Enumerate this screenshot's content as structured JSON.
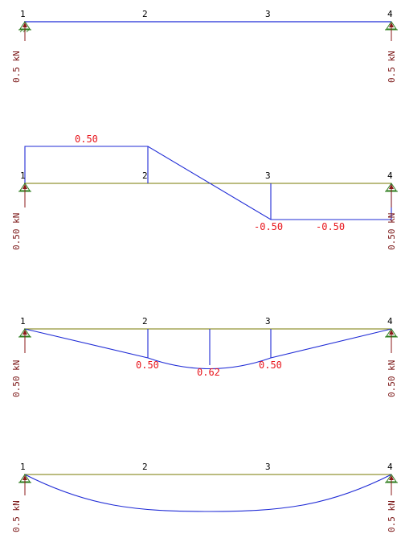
{
  "colors": {
    "beam_unloaded": "#1f2bd6",
    "beam": "#777a00",
    "diagram": "#1f2bd6",
    "value_text": "#e8151c",
    "reaction_text": "#7a1515",
    "support": "#2e7d1e",
    "arrow": "#8b1a1a"
  },
  "icons": {
    "support": "pinned-support-icon",
    "reaction": "reaction-arrow-icon"
  },
  "panels": [
    {
      "id": "loading",
      "nodes": [
        "1",
        "2",
        "3",
        "4"
      ],
      "reactions": {
        "left": "0.5 kN",
        "right": "0.5 kN"
      }
    },
    {
      "id": "shear",
      "nodes": [
        "1",
        "2",
        "3",
        "4"
      ],
      "values": [
        "0.50",
        "-0.50",
        "-0.50"
      ],
      "reactions": {
        "left": "0.50 kN",
        "right": "0.50 kN"
      }
    },
    {
      "id": "moment",
      "nodes": [
        "1",
        "2",
        "3",
        "4"
      ],
      "values": [
        "0.50",
        "0.62",
        "0.50"
      ],
      "reactions": {
        "left": "0.50 kN",
        "right": "0.50 kN"
      }
    },
    {
      "id": "deflection",
      "nodes": [
        "1",
        "2",
        "3",
        "4"
      ],
      "reactions": {
        "left": "0.5 kN",
        "right": "0.5 kN"
      }
    }
  ]
}
